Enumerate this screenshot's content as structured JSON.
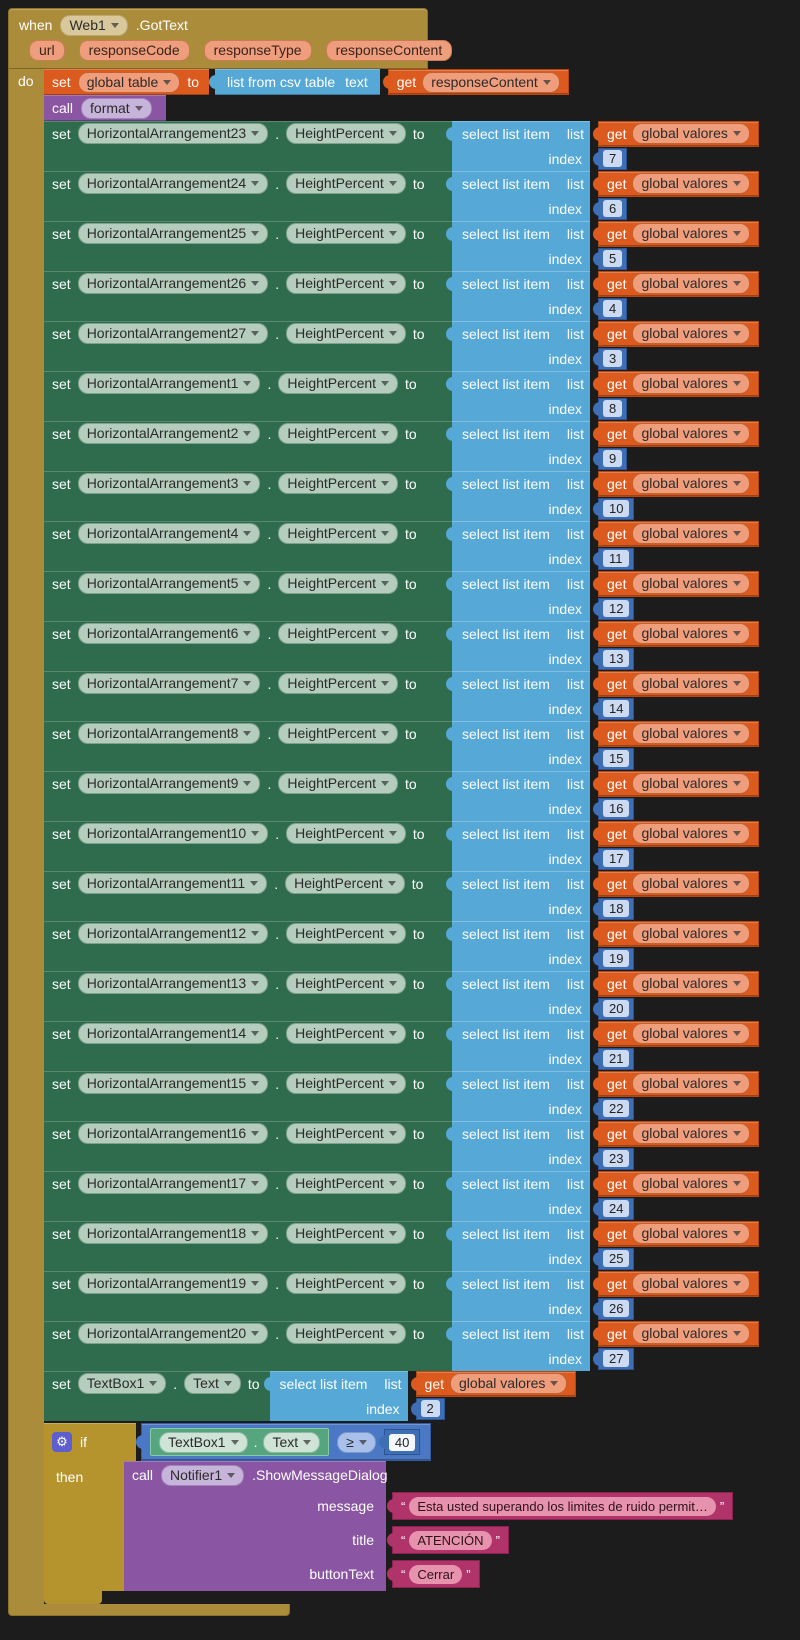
{
  "colors": {
    "event_gold": "#ab8c3a",
    "if_gold": "#b5942e",
    "setter_green": "#2e6c4d",
    "getter_green": "#55a57e",
    "list_blue": "#56a8d6",
    "math_blue": "#3e6fb5",
    "logic_blue": "#4a78c4",
    "variable_orange": "#dd5a1e",
    "procedure_purple": "#8a55a2",
    "text_pink": "#b0336a",
    "background": "#1c1c1c"
  },
  "event": {
    "when_label": "when",
    "component": "Web1",
    "event_name": ".GotText",
    "params": [
      "url",
      "responseCode",
      "responseType",
      "responseContent"
    ],
    "do_label": "do",
    "then_label": "then"
  },
  "set_global": {
    "set_label": "set",
    "var_name": "global table",
    "to_label": "to",
    "csv_label": "list from csv table",
    "text_label": "text",
    "get_label": "get",
    "getter_var": "responseContent"
  },
  "call_format": {
    "call_label": "call",
    "proc_name": "format"
  },
  "row_labels": {
    "set": "set",
    "dot": ".",
    "to": "to",
    "select": "select list item",
    "list": "list",
    "index": "index",
    "get": "get",
    "var": "global valores"
  },
  "rows": [
    {
      "component": "HorizontalArrangement23",
      "property": "HeightPercent",
      "index": "7"
    },
    {
      "component": "HorizontalArrangement24",
      "property": "HeightPercent",
      "index": "6"
    },
    {
      "component": "HorizontalArrangement25",
      "property": "HeightPercent",
      "index": "5"
    },
    {
      "component": "HorizontalArrangement26",
      "property": "HeightPercent",
      "index": "4"
    },
    {
      "component": "HorizontalArrangement27",
      "property": "HeightPercent",
      "index": "3"
    },
    {
      "component": "HorizontalArrangement1",
      "property": "HeightPercent",
      "index": "8"
    },
    {
      "component": "HorizontalArrangement2",
      "property": "HeightPercent",
      "index": "9"
    },
    {
      "component": "HorizontalArrangement3",
      "property": "HeightPercent",
      "index": "10"
    },
    {
      "component": "HorizontalArrangement4",
      "property": "HeightPercent",
      "index": "11"
    },
    {
      "component": "HorizontalArrangement5",
      "property": "HeightPercent",
      "index": "12"
    },
    {
      "component": "HorizontalArrangement6",
      "property": "HeightPercent",
      "index": "13"
    },
    {
      "component": "HorizontalArrangement7",
      "property": "HeightPercent",
      "index": "14"
    },
    {
      "component": "HorizontalArrangement8",
      "property": "HeightPercent",
      "index": "15"
    },
    {
      "component": "HorizontalArrangement9",
      "property": "HeightPercent",
      "index": "16"
    },
    {
      "component": "HorizontalArrangement10",
      "property": "HeightPercent",
      "index": "17"
    },
    {
      "component": "HorizontalArrangement11",
      "property": "HeightPercent",
      "index": "18"
    },
    {
      "component": "HorizontalArrangement12",
      "property": "HeightPercent",
      "index": "19"
    },
    {
      "component": "HorizontalArrangement13",
      "property": "HeightPercent",
      "index": "20"
    },
    {
      "component": "HorizontalArrangement14",
      "property": "HeightPercent",
      "index": "21"
    },
    {
      "component": "HorizontalArrangement15",
      "property": "HeightPercent",
      "index": "22"
    },
    {
      "component": "HorizontalArrangement16",
      "property": "HeightPercent",
      "index": "23"
    },
    {
      "component": "HorizontalArrangement17",
      "property": "HeightPercent",
      "index": "24"
    },
    {
      "component": "HorizontalArrangement18",
      "property": "HeightPercent",
      "index": "25"
    },
    {
      "component": "HorizontalArrangement19",
      "property": "HeightPercent",
      "index": "26"
    },
    {
      "component": "HorizontalArrangement20",
      "property": "HeightPercent",
      "index": "27"
    }
  ],
  "textbox_row": {
    "component": "TextBox1",
    "property": "Text",
    "index": "2"
  },
  "if_block": {
    "if_label": "if",
    "condition": {
      "component": "TextBox1",
      "property": "Text",
      "operator": "≥",
      "value": "40"
    }
  },
  "notifier": {
    "call_label": "call",
    "component": "Notifier1",
    "method": ".ShowMessageDialog",
    "args": [
      {
        "name": "message",
        "value": "Esta usted superando los limites de ruido permit…"
      },
      {
        "name": "title",
        "value": "ATENCIÓN"
      },
      {
        "name": "buttonText",
        "value": "Cerrar"
      }
    ]
  },
  "misc": {
    "quote_open": "“",
    "quote_close": "”",
    "gear_glyph": "⚙"
  }
}
